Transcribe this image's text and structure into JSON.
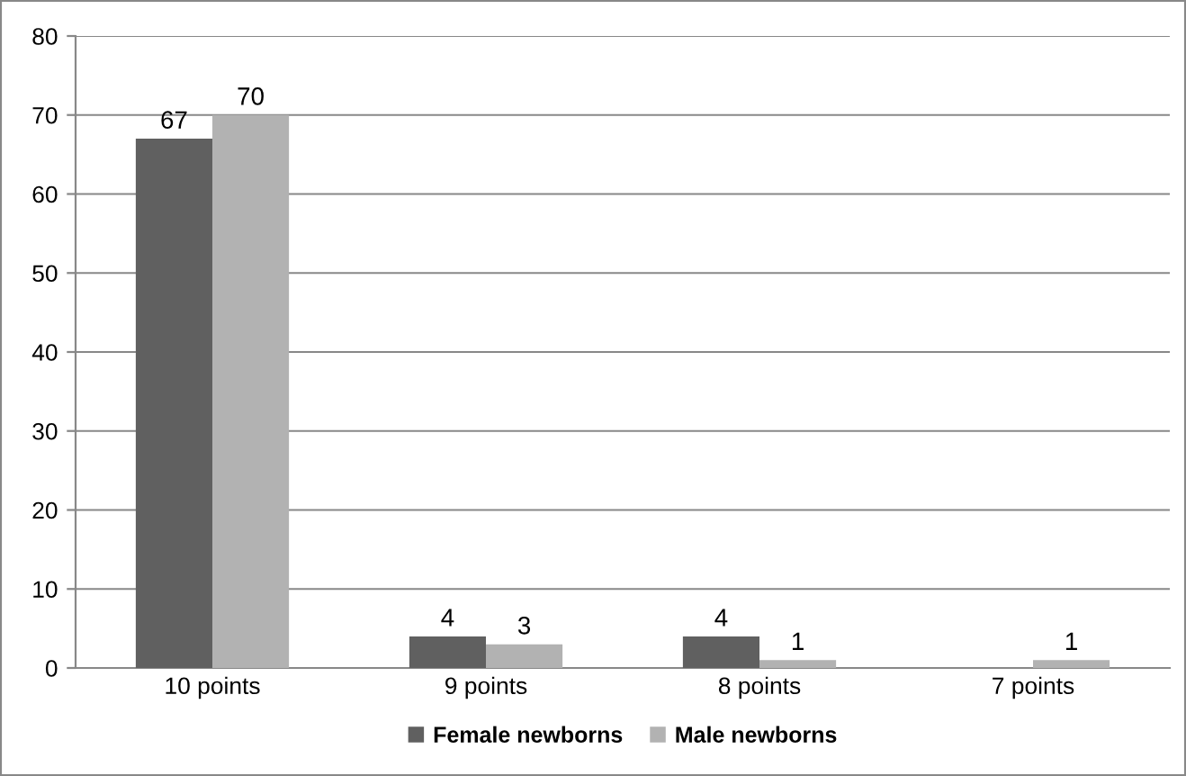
{
  "chart_data": {
    "type": "bar",
    "categories": [
      "10 points",
      "9 points",
      "8 points",
      "7 points"
    ],
    "series": [
      {
        "name": "Female newborns",
        "color": "#606060",
        "values": [
          67,
          4,
          4,
          null
        ]
      },
      {
        "name": "Male newborns",
        "color": "#b2b2b2",
        "values": [
          70,
          3,
          1,
          1
        ]
      }
    ],
    "ylim": [
      0,
      80
    ],
    "yticks": [
      0,
      10,
      20,
      30,
      40,
      50,
      60,
      70,
      80
    ],
    "grid": "y",
    "legend": "bottom",
    "data_labels": true
  }
}
